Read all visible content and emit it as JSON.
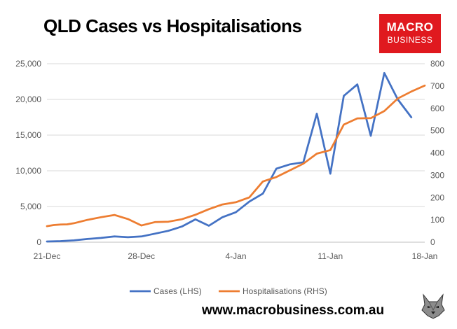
{
  "chart_data": {
    "type": "line",
    "title": "QLD Cases vs Hospitalisations",
    "xlabel": "",
    "ylabel": "",
    "x_ticks": [
      "21-Dec",
      "28-Dec",
      "4-Jan",
      "11-Jan",
      "18-Jan"
    ],
    "x_tick_day_index": [
      0,
      7,
      14,
      21,
      28
    ],
    "y_left": {
      "min": 0,
      "max": 25000,
      "ticks": [
        "0",
        "5,000",
        "10,000",
        "15,000",
        "20,000",
        "25,000"
      ]
    },
    "y_right": {
      "min": 0,
      "max": 800,
      "ticks": [
        "0",
        "100",
        "200",
        "300",
        "400",
        "500",
        "600",
        "700",
        "800"
      ]
    },
    "x_range": [
      0,
      28
    ],
    "grid": "horizontal",
    "legend_position": "bottom",
    "series": [
      {
        "name": "Cases (LHS)",
        "axis": "left",
        "color": "#4472c4",
        "x": [
          0,
          1,
          2,
          3,
          4,
          5,
          6,
          7,
          8,
          9,
          10,
          11,
          12,
          13,
          14,
          15,
          16,
          17,
          18,
          19,
          20,
          21,
          22,
          23,
          24,
          25,
          26,
          27
        ],
        "values": [
          100,
          150,
          250,
          450,
          600,
          800,
          700,
          800,
          1200,
          1600,
          2200,
          3200,
          2300,
          3500,
          4200,
          5700,
          6800,
          10300,
          10900,
          11200,
          18000,
          9600,
          20500,
          22100,
          14900,
          23700,
          20000,
          17500
        ]
      },
      {
        "name": "Hospitalisations (RHS)",
        "axis": "right",
        "color": "#ed7d31",
        "x": [
          0,
          0.5,
          1,
          1.5,
          2,
          3,
          4,
          5,
          6,
          7,
          8,
          9,
          10,
          11,
          12,
          13,
          14,
          15,
          16,
          17,
          18,
          19,
          20,
          21,
          22,
          23,
          24,
          25,
          26,
          27,
          28
        ],
        "values": [
          72,
          77,
          79,
          80,
          85,
          100,
          112,
          122,
          104,
          75,
          90,
          92,
          103,
          123,
          148,
          169,
          179,
          201,
          272,
          292,
          322,
          352,
          397,
          413,
          527,
          555,
          556,
          588,
          644,
          675,
          702
        ]
      }
    ]
  },
  "footer": {
    "url": "www.macrobusiness.com.au"
  },
  "logo": {
    "line1": "MACRO",
    "line2": "BUSINESS"
  },
  "colors": {
    "logo_bg": "#e0191f",
    "grid": "#d9d9d9",
    "axis": "#bfbfbf"
  }
}
